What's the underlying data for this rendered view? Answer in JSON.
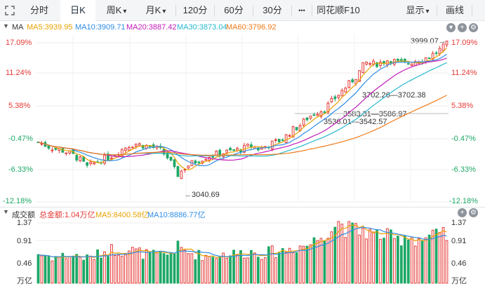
{
  "toolbar": {
    "tabs": [
      {
        "label": "分时",
        "active": false
      },
      {
        "label": "日K",
        "active": true
      },
      {
        "label": "周K",
        "active": false
      },
      {
        "label": "月K",
        "active": false
      },
      {
        "label": "120分",
        "active": false
      },
      {
        "label": "60分",
        "active": false
      },
      {
        "label": "30分",
        "active": false
      }
    ],
    "more_label": "•••",
    "f10_label": "同花顺F10",
    "display_label": "显示",
    "draw_label": "画线"
  },
  "price_panel": {
    "title": "MA",
    "ma": [
      {
        "label": "MA5:3939.95",
        "color": "#e8a200"
      },
      {
        "label": "MA10:3909.71",
        "color": "#2f8ce6"
      },
      {
        "label": "MA20:3887.42",
        "color": "#c21cb8"
      },
      {
        "label": "MA30:3873.04",
        "color": "#27b8cf"
      },
      {
        "label": "MA60:3796.92",
        "color": "#f07a19"
      }
    ],
    "y_ticks": [
      "17.09%",
      "11.24%",
      "5.38%",
      "-0.47%",
      "-6.33%",
      "-12.18%"
    ],
    "annotations": {
      "high": "3999.07",
      "low": "3040.69",
      "level1": "3702.26—3702.38",
      "level2": "3583.31—3586.97",
      "level3": "3536.01—3542.57"
    }
  },
  "volume_panel": {
    "title": "成交额",
    "total_label": "总金额:1.04万亿",
    "ma5_label": "MA5:8400.58亿",
    "ma10_label": "MA10:8886.77亿",
    "y_ticks": [
      "1.37",
      "0.91",
      "0.46"
    ],
    "unit": "万亿"
  },
  "colors": {
    "up": "#e53935",
    "down": "#1ea866",
    "ma5": "#e8a200",
    "ma10": "#2f8ce6",
    "ma20": "#c21cb8",
    "ma30": "#27b8cf",
    "ma60": "#f07a19"
  },
  "chart_data": {
    "type": "candlestick",
    "ylim": [
      3040.69,
      3999.07
    ],
    "y_tick_labels": [
      "17.09%",
      "11.24%",
      "5.38%",
      "-0.47%",
      "-6.33%",
      "-12.18%"
    ],
    "close_anchors": [
      3400,
      3380,
      3360,
      3350,
      3330,
      3300,
      3250,
      3280,
      3300,
      3320,
      3350,
      3380,
      3390,
      3380,
      3370,
      3350,
      3300,
      3200,
      3250,
      3280,
      3300,
      3320,
      3330,
      3340,
      3350,
      3360,
      3380,
      3360,
      3380,
      3400,
      3420,
      3470,
      3500,
      3550,
      3580,
      3600,
      3650,
      3700,
      3750,
      3800,
      3880,
      3870,
      3880,
      3900,
      3880,
      3870,
      3890,
      3900,
      3920,
      3950,
      3990
    ],
    "volume_anchors": [
      0.65,
      0.6,
      0.58,
      0.6,
      0.62,
      0.6,
      0.55,
      0.6,
      0.7,
      0.75,
      0.72,
      0.75,
      0.7,
      0.65,
      0.62,
      0.6,
      0.65,
      0.8,
      0.7,
      0.65,
      0.62,
      0.6,
      0.62,
      0.65,
      0.65,
      0.66,
      0.7,
      0.65,
      0.68,
      0.7,
      0.72,
      0.78,
      0.82,
      0.85,
      0.95,
      1.15,
      1.25,
      1.37,
      1.2,
      1.15,
      1.2,
      1.05,
      1.1,
      1.0,
      0.95,
      1.1,
      1.0,
      0.98,
      1.02,
      1.04,
      1.04
    ],
    "volume_ylim": [
      0,
      1.37
    ]
  }
}
